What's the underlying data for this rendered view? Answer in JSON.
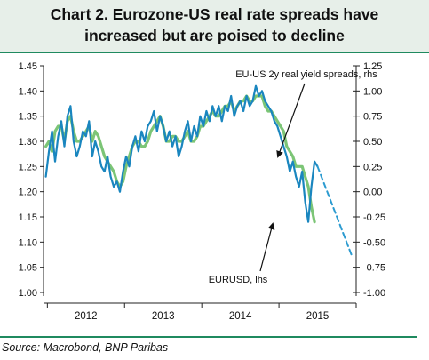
{
  "title": {
    "line1": "Chart 2. Eurozone-US real rate spreads have",
    "line2": "increased but are poised to decline"
  },
  "source": "Source: Macrobond, BNP Paribas",
  "colors": {
    "eurusd": "#7cc576",
    "spread": "#1a86bf",
    "projection": "#2c9bd0",
    "accent_rule": "#1f8a5f",
    "title_bg": "#e7efe9"
  },
  "chart_data": {
    "type": "line",
    "xlabel": "",
    "x_ticks": [
      "2012",
      "2013",
      "2014",
      "2015"
    ],
    "x_range": [
      2011.55,
      2015.6
    ],
    "left_axis": {
      "label": "",
      "range": [
        1.0,
        1.45
      ],
      "ticks": [
        "1.45",
        "1.40",
        "1.35",
        "1.30",
        "1.25",
        "1.20",
        "1.15",
        "1.10",
        "1.05",
        "1.00"
      ]
    },
    "right_axis": {
      "label": "",
      "range": [
        -1.0,
        1.25
      ],
      "ticks": [
        "1.25",
        "1.00",
        "0.75",
        "0.50",
        "0.25",
        "0.00",
        "-0.25",
        "-0.50",
        "-0.75",
        "-1.00"
      ]
    },
    "series": [
      {
        "name": "EURUSD, lhs",
        "axis": "left",
        "x": [
          2011.58,
          2011.62,
          2011.66,
          2011.7,
          2011.74,
          2011.78,
          2011.82,
          2011.86,
          2011.9,
          2011.94,
          2011.98,
          2012.02,
          2012.06,
          2012.1,
          2012.14,
          2012.18,
          2012.22,
          2012.26,
          2012.3,
          2012.34,
          2012.38,
          2012.42,
          2012.46,
          2012.5,
          2012.54,
          2012.58,
          2012.62,
          2012.66,
          2012.7,
          2012.74,
          2012.78,
          2012.82,
          2012.86,
          2012.9,
          2012.94,
          2012.98,
          2013.02,
          2013.06,
          2013.1,
          2013.14,
          2013.18,
          2013.22,
          2013.26,
          2013.3,
          2013.34,
          2013.38,
          2013.42,
          2013.46,
          2013.5,
          2013.54,
          2013.58,
          2013.62,
          2013.66,
          2013.7,
          2013.74,
          2013.78,
          2013.82,
          2013.86,
          2013.9,
          2013.94,
          2013.98,
          2014.02,
          2014.06,
          2014.1,
          2014.14,
          2014.18,
          2014.22,
          2014.26,
          2014.3,
          2014.34,
          2014.38,
          2014.42,
          2014.46,
          2014.5,
          2014.54,
          2014.58,
          2014.62,
          2014.66,
          2014.7,
          2014.74,
          2014.78,
          2014.82,
          2014.86,
          2014.9,
          2014.94,
          2014.98,
          2015.02,
          2015.06
        ],
        "values": [
          1.29,
          1.3,
          1.28,
          1.32,
          1.33,
          1.33,
          1.3,
          1.34,
          1.35,
          1.32,
          1.3,
          1.3,
          1.31,
          1.32,
          1.33,
          1.3,
          1.32,
          1.31,
          1.29,
          1.27,
          1.26,
          1.25,
          1.24,
          1.22,
          1.21,
          1.22,
          1.25,
          1.27,
          1.29,
          1.3,
          1.3,
          1.29,
          1.29,
          1.3,
          1.32,
          1.33,
          1.34,
          1.35,
          1.33,
          1.3,
          1.3,
          1.31,
          1.31,
          1.3,
          1.3,
          1.31,
          1.32,
          1.3,
          1.3,
          1.31,
          1.33,
          1.33,
          1.34,
          1.35,
          1.36,
          1.35,
          1.35,
          1.36,
          1.37,
          1.37,
          1.38,
          1.36,
          1.37,
          1.38,
          1.38,
          1.39,
          1.38,
          1.38,
          1.39,
          1.39,
          1.39,
          1.37,
          1.36,
          1.36,
          1.35,
          1.34,
          1.33,
          1.32,
          1.29,
          1.28,
          1.27,
          1.25,
          1.25,
          1.25,
          1.23,
          1.21,
          1.17,
          1.14
        ]
      },
      {
        "name": "EU-US 2y real yield spreads, rhs",
        "axis": "right",
        "x": [
          2011.58,
          2011.62,
          2011.66,
          2011.7,
          2011.74,
          2011.78,
          2011.82,
          2011.86,
          2011.9,
          2011.94,
          2011.98,
          2012.02,
          2012.06,
          2012.1,
          2012.14,
          2012.18,
          2012.22,
          2012.26,
          2012.3,
          2012.34,
          2012.38,
          2012.42,
          2012.46,
          2012.5,
          2012.54,
          2012.58,
          2012.62,
          2012.66,
          2012.7,
          2012.74,
          2012.78,
          2012.82,
          2012.86,
          2012.9,
          2012.94,
          2012.98,
          2013.02,
          2013.06,
          2013.1,
          2013.14,
          2013.18,
          2013.22,
          2013.26,
          2013.3,
          2013.34,
          2013.38,
          2013.42,
          2013.46,
          2013.5,
          2013.54,
          2013.58,
          2013.62,
          2013.66,
          2013.7,
          2013.74,
          2013.78,
          2013.82,
          2013.86,
          2013.9,
          2013.94,
          2013.98,
          2014.02,
          2014.06,
          2014.1,
          2014.14,
          2014.18,
          2014.22,
          2014.26,
          2014.3,
          2014.34,
          2014.38,
          2014.42,
          2014.46,
          2014.5,
          2014.54,
          2014.58,
          2014.62,
          2014.66,
          2014.7,
          2014.74,
          2014.78,
          2014.82,
          2014.86,
          2014.9,
          2014.94,
          2014.98,
          2015.02,
          2015.06,
          2015.1
        ],
        "values": [
          0.15,
          0.4,
          0.6,
          0.3,
          0.55,
          0.7,
          0.45,
          0.75,
          0.85,
          0.5,
          0.35,
          0.45,
          0.6,
          0.55,
          0.7,
          0.35,
          0.5,
          0.4,
          0.25,
          0.2,
          0.35,
          0.15,
          0.05,
          0.1,
          0.0,
          0.2,
          0.35,
          0.25,
          0.45,
          0.55,
          0.4,
          0.6,
          0.5,
          0.65,
          0.7,
          0.8,
          0.6,
          0.75,
          0.65,
          0.5,
          0.6,
          0.45,
          0.55,
          0.35,
          0.45,
          0.6,
          0.7,
          0.5,
          0.65,
          0.55,
          0.75,
          0.65,
          0.8,
          0.7,
          0.85,
          0.75,
          0.85,
          0.7,
          0.85,
          0.8,
          0.95,
          0.75,
          0.85,
          0.9,
          0.8,
          0.95,
          0.85,
          0.9,
          1.05,
          0.95,
          1.0,
          0.9,
          0.85,
          0.8,
          0.7,
          0.65,
          0.55,
          0.45,
          0.35,
          0.2,
          0.3,
          0.15,
          0.05,
          0.2,
          -0.1,
          -0.3,
          0.05,
          0.3,
          0.25
        ]
      },
      {
        "name": "Projection",
        "axis": "right",
        "style": "dashed",
        "x": [
          2015.1,
          2015.55
        ],
        "values": [
          0.25,
          -0.65
        ]
      }
    ],
    "annotations": [
      {
        "text": "EU-US 2y real yield spreads, rhs"
      },
      {
        "text": "EURUSD, lhs"
      }
    ],
    "grid": false,
    "legend": "none"
  }
}
